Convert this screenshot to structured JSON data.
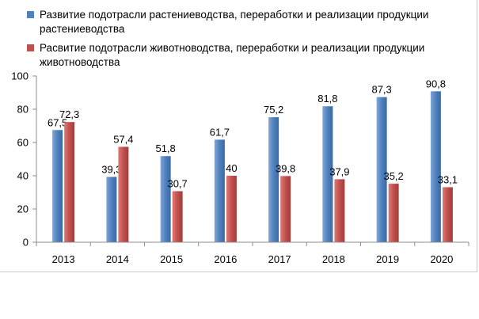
{
  "chart_data": {
    "type": "bar",
    "categories": [
      "2013",
      "2014",
      "2015",
      "2016",
      "2017",
      "2018",
      "2019",
      "2020"
    ],
    "series": [
      {
        "name": "Развитие подотрасли растениеводства, переработки и реализации продукции растениеводства",
        "values": [
          67.5,
          39.3,
          51.8,
          61.7,
          75.2,
          81.8,
          87.3,
          90.8
        ],
        "labels": [
          "67,5",
          "39,3",
          "51,8",
          "61,7",
          "75,2",
          "81,8",
          "87,3",
          "90,8"
        ],
        "color": "#4f81bd"
      },
      {
        "name": "Расвитие подотрасли животноводства, переработки и реализации продукции животноводства",
        "values": [
          72.3,
          57.4,
          30.7,
          40,
          39.8,
          37.9,
          35.2,
          33.1
        ],
        "labels": [
          "72,3",
          "57,4",
          "30,7",
          "40",
          "39,8",
          "37,9",
          "35,2",
          "33,1"
        ],
        "color": "#c0504d"
      }
    ],
    "yticks": [
      "0",
      "20",
      "40",
      "60",
      "80",
      "100"
    ],
    "ylim": [
      0,
      100
    ],
    "legend_position": "top",
    "grid": false
  }
}
